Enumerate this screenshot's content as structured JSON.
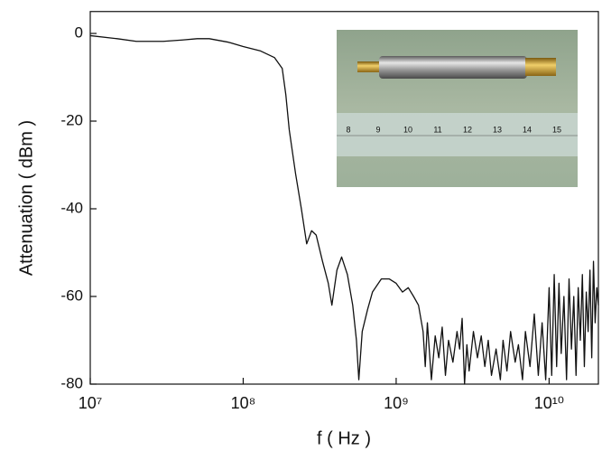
{
  "chart_data": {
    "type": "line",
    "xlabel": "f ( Hz )",
    "ylabel": "Attenuation ( dBm )",
    "xscale": "log",
    "xlim": [
      10000000.0,
      21000000000.0
    ],
    "ylim": [
      -80,
      5
    ],
    "xticks": [
      {
        "value": 10000000.0,
        "label": "10⁷"
      },
      {
        "value": 100000000.0,
        "label": "10⁸"
      },
      {
        "value": 1000000000.0,
        "label": "10⁹"
      },
      {
        "value": 10000000000.0,
        "label": "10¹⁰"
      }
    ],
    "yticks": [
      0,
      -20,
      -40,
      -60,
      -80
    ],
    "color": "#111111",
    "x": [
      10000000.0,
      15000000.0,
      20000000.0,
      30000000.0,
      40000000.0,
      50000000.0,
      60000000.0,
      80000000.0,
      100000000.0,
      130000000.0,
      160000000.0,
      180000000.0,
      190000000.0,
      200000000.0,
      220000000.0,
      240000000.0,
      260000000.0,
      280000000.0,
      300000000.0,
      330000000.0,
      360000000.0,
      380000000.0,
      410000000.0,
      440000000.0,
      480000000.0,
      520000000.0,
      550000000.0,
      570000000.0,
      600000000.0,
      650000000.0,
      700000000.0,
      800000000.0,
      900000000.0,
      1000000000.0,
      1100000000.0,
      1200000000.0,
      1300000000.0,
      1400000000.0,
      1500000000.0,
      1550000000.0,
      1600000000.0,
      1700000000.0,
      1800000000.0,
      1900000000.0,
      2000000000.0,
      2100000000.0,
      2200000000.0,
      2350000000.0,
      2500000000.0,
      2600000000.0,
      2700000000.0,
      2800000000.0,
      2900000000.0,
      3000000000.0,
      3200000000.0,
      3400000000.0,
      3600000000.0,
      3800000000.0,
      4000000000.0,
      4200000000.0,
      4500000000.0,
      4800000000.0,
      5000000000.0,
      5300000000.0,
      5600000000.0,
      6000000000.0,
      6300000000.0,
      6700000000.0,
      7000000000.0,
      7500000000.0,
      8000000000.0,
      8500000000.0,
      9000000000.0,
      9500000000.0,
      10000000000.0,
      10400000000.0,
      10800000000.0,
      11200000000.0,
      11600000000.0,
      12000000000.0,
      12500000000.0,
      13000000000.0,
      13500000000.0,
      14000000000.0,
      14500000000.0,
      15000000000.0,
      15500000000.0,
      16000000000.0,
      16500000000.0,
      17000000000.0,
      17500000000.0,
      18000000000.0,
      18500000000.0,
      19000000000.0,
      19500000000.0,
      20000000000.0,
      20500000000.0,
      21000000000.0
    ],
    "values": [
      -0.5,
      -1.2,
      -1.8,
      -1.8,
      -1.5,
      -1.2,
      -1.2,
      -2,
      -3,
      -4,
      -5.5,
      -8,
      -14,
      -22,
      -32,
      -40,
      -48,
      -45,
      -46,
      -52,
      -57,
      -62,
      -54,
      -51,
      -55,
      -62,
      -70,
      -79,
      -68,
      -63,
      -59,
      -56,
      -56,
      -57,
      -59,
      -58,
      -60,
      -62,
      -68,
      -76,
      -66,
      -79,
      -69,
      -74,
      -67,
      -78,
      -70,
      -75,
      -68,
      -72,
      -65,
      -80,
      -71,
      -77,
      -68,
      -74,
      -69,
      -76,
      -70,
      -78,
      -72,
      -79,
      -70,
      -77,
      -68,
      -75,
      -71,
      -79,
      -68,
      -76,
      -64,
      -78,
      -66,
      -79,
      -58,
      -78,
      -55,
      -76,
      -57,
      -73,
      -60,
      -79,
      -56,
      -72,
      -60,
      -78,
      -58,
      -70,
      -55,
      -76,
      -59,
      -68,
      -54,
      -74,
      -52,
      -66,
      -58,
      -62
    ],
    "inset_labels": [
      "8",
      "9",
      "10",
      "11",
      "12",
      "13",
      "14",
      "15"
    ]
  }
}
